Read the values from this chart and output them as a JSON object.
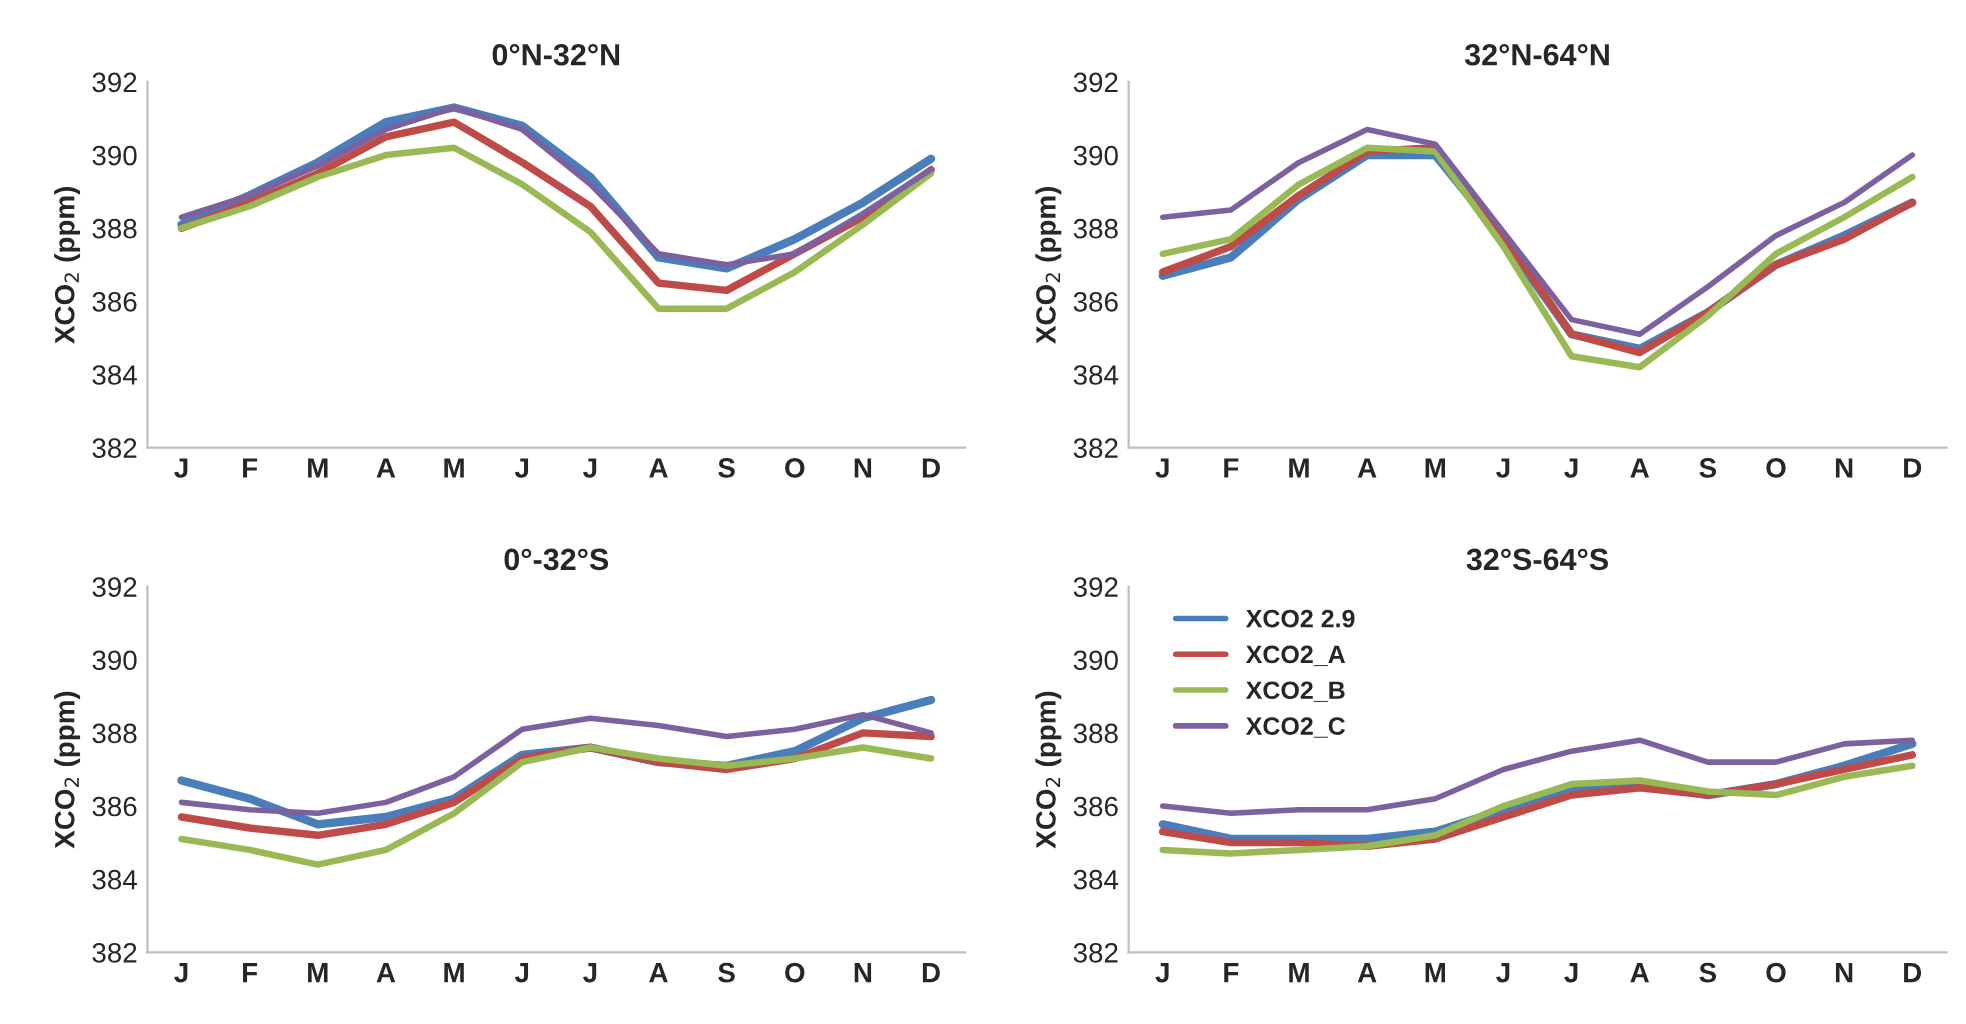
{
  "chart_data": [
    {
      "type": "line",
      "title": "0°N-32°N",
      "ylabel": "XCO$_{2}$ (ppm)",
      "categories": [
        "J",
        "F",
        "M",
        "A",
        "M",
        "J",
        "J",
        "A",
        "S",
        "O",
        "N",
        "D"
      ],
      "ylim": [
        382,
        392
      ],
      "yticks": [
        382,
        384,
        386,
        388,
        390,
        392
      ],
      "grid": false,
      "legend": false,
      "series": [
        {
          "color": "#4a7ebb",
          "values": [
            388.1,
            388.9,
            389.8,
            390.9,
            391.3,
            390.8,
            389.4,
            387.2,
            386.9,
            387.7,
            388.7,
            389.9
          ]
        },
        {
          "color": "#be4b48",
          "values": [
            388.0,
            388.7,
            389.5,
            390.5,
            390.9,
            389.8,
            388.6,
            386.5,
            386.3,
            387.3,
            388.3,
            389.6
          ]
        },
        {
          "color": "#98b954",
          "values": [
            388.0,
            388.6,
            389.4,
            390.0,
            390.2,
            389.2,
            387.9,
            385.8,
            385.8,
            386.8,
            388.1,
            389.5
          ]
        },
        {
          "color": "#7d60a0",
          "values": [
            388.3,
            388.9,
            389.7,
            390.7,
            391.3,
            390.7,
            389.2,
            387.3,
            387.0,
            387.3,
            388.4,
            389.6
          ]
        }
      ]
    },
    {
      "type": "line",
      "title": "32°N-64°N",
      "ylabel": "XCO$_{2}$ (ppm)",
      "categories": [
        "J",
        "F",
        "M",
        "A",
        "M",
        "J",
        "J",
        "A",
        "S",
        "O",
        "N",
        "D"
      ],
      "ylim": [
        382,
        392
      ],
      "yticks": [
        382,
        384,
        386,
        388,
        390,
        392
      ],
      "grid": false,
      "legend": false,
      "series": [
        {
          "color": "#4a7ebb",
          "values": [
            386.7,
            387.2,
            388.8,
            390.0,
            390.0,
            387.7,
            385.1,
            384.7,
            385.7,
            387.0,
            387.8,
            388.7
          ]
        },
        {
          "color": "#be4b48",
          "values": [
            386.8,
            387.5,
            388.9,
            390.1,
            390.2,
            387.8,
            385.1,
            384.6,
            385.7,
            387.0,
            387.7,
            388.7
          ]
        },
        {
          "color": "#98b954",
          "values": [
            387.3,
            387.7,
            389.2,
            390.2,
            390.1,
            387.5,
            384.5,
            384.2,
            385.6,
            387.3,
            388.3,
            389.4
          ]
        },
        {
          "color": "#7d60a0",
          "values": [
            388.3,
            388.5,
            389.8,
            390.7,
            390.3,
            387.9,
            385.5,
            385.1,
            386.4,
            387.8,
            388.7,
            390.0
          ]
        }
      ]
    },
    {
      "type": "line",
      "title": "0°-32°S",
      "ylabel": "XCO$_{2}$ (ppm)",
      "categories": [
        "J",
        "F",
        "M",
        "A",
        "M",
        "J",
        "J",
        "A",
        "S",
        "O",
        "N",
        "D"
      ],
      "ylim": [
        382,
        392
      ],
      "yticks": [
        382,
        384,
        386,
        388,
        390,
        392
      ],
      "grid": false,
      "legend": false,
      "series": [
        {
          "color": "#4a7ebb",
          "values": [
            386.7,
            386.2,
            385.5,
            385.7,
            386.2,
            387.4,
            387.6,
            387.2,
            387.1,
            387.5,
            388.4,
            388.9
          ]
        },
        {
          "color": "#be4b48",
          "values": [
            385.7,
            385.4,
            385.2,
            385.5,
            386.1,
            387.3,
            387.6,
            387.2,
            387.0,
            387.3,
            388.0,
            387.9
          ]
        },
        {
          "color": "#98b954",
          "values": [
            385.1,
            384.8,
            384.4,
            384.8,
            385.8,
            387.2,
            387.6,
            387.3,
            387.1,
            387.3,
            387.6,
            387.3
          ]
        },
        {
          "color": "#7d60a0",
          "values": [
            386.1,
            385.9,
            385.8,
            386.1,
            386.8,
            388.1,
            388.4,
            388.2,
            387.9,
            388.1,
            388.5,
            388.0
          ]
        }
      ]
    },
    {
      "type": "line",
      "title": "32°S-64°S",
      "ylabel": "XCO$_{2}$ (ppm)",
      "categories": [
        "J",
        "F",
        "M",
        "A",
        "M",
        "J",
        "J",
        "A",
        "S",
        "O",
        "N",
        "D"
      ],
      "ylim": [
        382,
        392
      ],
      "yticks": [
        382,
        384,
        386,
        388,
        390,
        392
      ],
      "grid": false,
      "legend": "top left",
      "series": [
        {
          "name": "XCO2 2.9",
          "color": "#4a7ebb",
          "values": [
            385.5,
            385.1,
            385.1,
            385.1,
            385.3,
            385.9,
            386.4,
            386.6,
            386.3,
            386.6,
            387.1,
            387.7
          ]
        },
        {
          "name": "XCO2_A",
          "color": "#be4b48",
          "values": [
            385.3,
            385.0,
            385.0,
            384.9,
            385.1,
            385.7,
            386.3,
            386.5,
            386.3,
            386.6,
            387.0,
            387.4
          ]
        },
        {
          "name": "XCO2_B",
          "color": "#98b954",
          "values": [
            384.8,
            384.7,
            384.8,
            384.9,
            385.2,
            386.0,
            386.6,
            386.7,
            386.4,
            386.3,
            386.8,
            387.1
          ]
        },
        {
          "name": "XCO2_C",
          "color": "#7d60a0",
          "values": [
            386.0,
            385.8,
            385.9,
            385.9,
            386.2,
            387.0,
            387.5,
            387.8,
            387.2,
            387.2,
            387.7,
            387.8
          ]
        }
      ]
    }
  ]
}
